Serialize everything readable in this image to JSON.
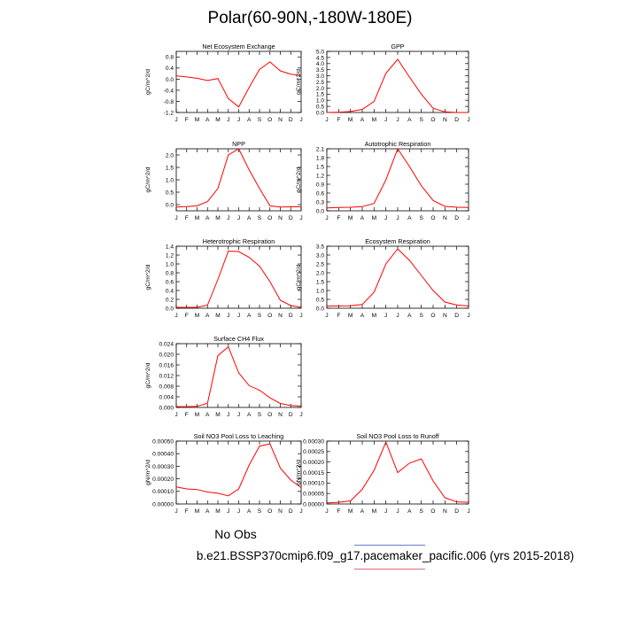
{
  "figure": {
    "title": "Polar(60-90N,-180W-180E)",
    "legend_label": "No Obs",
    "case_label": "b.e21.BSSP370cmip6.f09_g17.pacemaker_pacific.006 (yrs 2015-2018)",
    "line_color": "#ff0000",
    "legend_line_colors": [
      "#6a7bd8",
      "#e06b7a"
    ]
  },
  "chart_data": [
    {
      "type": "line",
      "title": "Net Ecosystem Exchange",
      "ylabel": "gC/m^2/d",
      "x": [
        "J",
        "F",
        "M",
        "A",
        "M",
        "J",
        "J",
        "A",
        "S",
        "O",
        "N",
        "D",
        "J"
      ],
      "values": [
        0.12,
        0.08,
        0.03,
        -0.05,
        0.02,
        -0.7,
        -1.0,
        -0.3,
        0.35,
        0.62,
        0.3,
        0.18,
        0.13
      ],
      "ylim": [
        -1.2,
        1.0
      ],
      "yticks": [
        -1.2,
        -0.8,
        -0.4,
        0.0,
        0.4,
        0.8
      ],
      "ytick_labels": [
        "-1.2",
        "-0.8",
        "-0.4",
        "0.0",
        "0.4",
        "0.8"
      ]
    },
    {
      "type": "line",
      "title": "GPP",
      "ylabel": "gC/m^2/d",
      "x": [
        "J",
        "F",
        "M",
        "A",
        "M",
        "J",
        "J",
        "A",
        "S",
        "O",
        "N",
        "D",
        "J"
      ],
      "values": [
        0.0,
        0.02,
        0.08,
        0.25,
        0.9,
        3.2,
        4.35,
        2.9,
        1.5,
        0.35,
        0.05,
        0.0,
        0.0
      ],
      "ylim": [
        0.0,
        5.0
      ],
      "yticks": [
        0.0,
        0.5,
        1.0,
        1.5,
        2.0,
        2.5,
        3.0,
        3.5,
        4.0,
        4.5,
        5.0
      ],
      "ytick_labels": [
        "0.0",
        "0.5",
        "1.0",
        "1.5",
        "2.0",
        "2.5",
        "3.0",
        "3.5",
        "4.0",
        "4.5",
        "5.0"
      ]
    },
    {
      "type": "line",
      "title": "NPP",
      "ylabel": "gC/m^2/d",
      "x": [
        "J",
        "F",
        "M",
        "A",
        "M",
        "J",
        "J",
        "A",
        "S",
        "O",
        "N",
        "D",
        "J"
      ],
      "values": [
        -0.1,
        -0.08,
        -0.05,
        0.12,
        0.65,
        2.0,
        2.25,
        1.4,
        0.65,
        -0.05,
        -0.1,
        -0.09,
        -0.09
      ],
      "ylim": [
        -0.25,
        2.25
      ],
      "yticks": [
        0.0,
        0.5,
        1.0,
        1.5,
        2.0
      ],
      "ytick_labels": [
        "0.0",
        "0.5",
        "1.0",
        "1.5",
        "2.0"
      ]
    },
    {
      "type": "line",
      "title": "Autotrophic Respiration",
      "ylabel": "gC/m^2/d",
      "x": [
        "J",
        "F",
        "M",
        "A",
        "M",
        "J",
        "J",
        "A",
        "S",
        "O",
        "N",
        "D",
        "J"
      ],
      "values": [
        0.1,
        0.11,
        0.12,
        0.14,
        0.25,
        1.05,
        2.1,
        1.5,
        0.85,
        0.35,
        0.15,
        0.12,
        0.11
      ],
      "ylim": [
        0.0,
        2.1
      ],
      "yticks": [
        0.0,
        0.3,
        0.6,
        0.9,
        1.2,
        1.5,
        1.8,
        2.1
      ],
      "ytick_labels": [
        "0.0",
        "0.3",
        "0.6",
        "0.9",
        "1.2",
        "1.5",
        "1.8",
        "2.1"
      ]
    },
    {
      "type": "line",
      "title": "Heterotrophic Respiration",
      "ylabel": "gC/m^2/d",
      "x": [
        "J",
        "F",
        "M",
        "A",
        "M",
        "J",
        "J",
        "A",
        "S",
        "O",
        "N",
        "D",
        "J"
      ],
      "values": [
        0.02,
        0.02,
        0.02,
        0.07,
        0.65,
        1.29,
        1.28,
        1.15,
        0.95,
        0.6,
        0.18,
        0.06,
        0.02
      ],
      "ylim": [
        0.0,
        1.4
      ],
      "yticks": [
        0.0,
        0.2,
        0.4,
        0.6,
        0.8,
        1.0,
        1.2,
        1.4
      ],
      "ytick_labels": [
        "0.0",
        "0.2",
        "0.4",
        "0.6",
        "0.8",
        "1.0",
        "1.2",
        "1.4"
      ]
    },
    {
      "type": "line",
      "title": "Ecosystem Respiration",
      "ylabel": "gC/m^2/d",
      "x": [
        "J",
        "F",
        "M",
        "A",
        "M",
        "J",
        "J",
        "A",
        "S",
        "O",
        "N",
        "D",
        "J"
      ],
      "values": [
        0.12,
        0.13,
        0.14,
        0.21,
        0.9,
        2.5,
        3.35,
        2.7,
        1.85,
        1.0,
        0.35,
        0.18,
        0.13
      ],
      "ylim": [
        0.0,
        3.5
      ],
      "yticks": [
        0.0,
        0.5,
        1.0,
        1.5,
        2.0,
        2.5,
        3.0,
        3.5
      ],
      "ytick_labels": [
        "0.0",
        "0.5",
        "1.0",
        "1.5",
        "2.0",
        "2.5",
        "3.0",
        "3.5"
      ]
    },
    {
      "type": "line",
      "title": "Surface CH4 Flux",
      "ylabel": "gC/m^2/d",
      "x": [
        "J",
        "F",
        "M",
        "A",
        "M",
        "J",
        "J",
        "A",
        "S",
        "O",
        "N",
        "D",
        "J"
      ],
      "values": [
        0.0003,
        0.0003,
        0.0004,
        0.0016,
        0.0195,
        0.0228,
        0.013,
        0.0082,
        0.0065,
        0.0036,
        0.0015,
        0.0007,
        0.0005
      ],
      "ylim": [
        0.0,
        0.024
      ],
      "yticks": [
        0.0,
        0.004,
        0.008,
        0.012,
        0.016,
        0.02,
        0.024
      ],
      "ytick_labels": [
        "0.000",
        "0.004",
        "0.008",
        "0.012",
        "0.016",
        "0.020",
        "0.024"
      ]
    },
    {
      "type": "line",
      "title": "Soil NO3 Pool Loss to Leaching",
      "ylabel": "gN/m^2/d",
      "x": [
        "J",
        "F",
        "M",
        "A",
        "M",
        "J",
        "J",
        "A",
        "S",
        "O",
        "N",
        "D",
        "J"
      ],
      "values": [
        0.000135,
        0.00012,
        0.000115,
        9.5e-05,
        8.5e-05,
        6.5e-05,
        0.00012,
        0.00031,
        0.00046,
        0.000478,
        0.000285,
        0.00019,
        0.00013
      ],
      "ylim": [
        0.0,
        0.0005
      ],
      "yticks": [
        0.0,
        0.0001,
        0.0002,
        0.0003,
        0.0004,
        0.0005
      ],
      "ytick_labels": [
        "0.00000",
        "0.00010",
        "0.00020",
        "0.00030",
        "0.00040",
        "0.00050"
      ]
    },
    {
      "type": "line",
      "title": "Soil NO3 Pool Loss to Runoff",
      "ylabel": "gN/m^2/d",
      "x": [
        "J",
        "F",
        "M",
        "A",
        "M",
        "J",
        "J",
        "A",
        "S",
        "O",
        "N",
        "D",
        "J"
      ],
      "values": [
        5e-06,
        8e-06,
        1.5e-05,
        7e-05,
        0.00016,
        0.000295,
        0.00015,
        0.000195,
        0.000215,
        0.00011,
        3e-05,
        1e-05,
        8e-06
      ],
      "ylim": [
        0.0,
        0.0003
      ],
      "yticks": [
        0.0,
        5e-05,
        0.0001,
        0.00015,
        0.0002,
        0.00025,
        0.0003
      ],
      "ytick_labels": [
        "0.00000",
        "0.00005",
        "0.00010",
        "0.00015",
        "0.00020",
        "0.00025",
        "0.00030"
      ]
    }
  ]
}
